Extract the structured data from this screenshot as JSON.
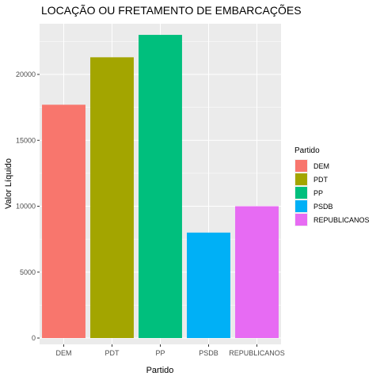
{
  "chart_data": {
    "type": "bar",
    "title": "LOCAÇÃO OU FRETAMENTO DE EMBARCAÇÕES",
    "xlabel": "Partido",
    "ylabel": "Valor Líquido",
    "categories": [
      "DEM",
      "PDT",
      "PP",
      "PSDB",
      "REPUBLICANOS"
    ],
    "values": [
      17700,
      21300,
      23000,
      8000,
      10000
    ],
    "colors": [
      "#F8766D",
      "#A3A500",
      "#00BF7D",
      "#00B0F6",
      "#E76BF3"
    ],
    "ylim": [
      0,
      24000
    ],
    "yticks": [
      0,
      5000,
      10000,
      15000,
      20000
    ],
    "ytick_labels": [
      "0",
      "5000",
      "10000",
      "15000",
      "20000"
    ],
    "grid": true,
    "legend": {
      "title": "Partido",
      "placement": "right",
      "entries": [
        "DEM",
        "PDT",
        "PP",
        "PSDB",
        "REPUBLICANOS"
      ]
    }
  }
}
